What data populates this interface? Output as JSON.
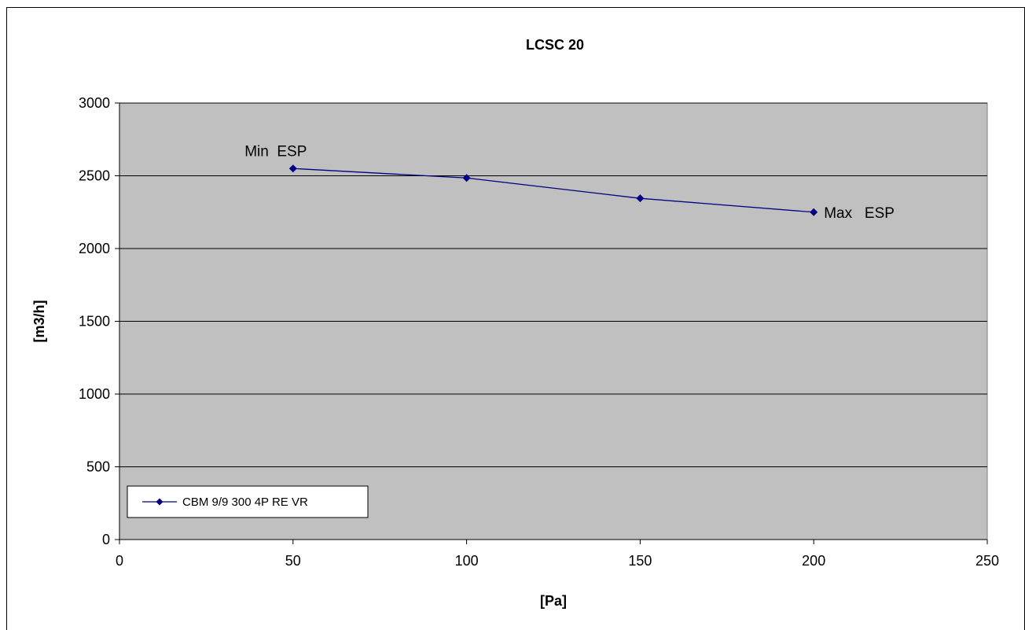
{
  "chart_data": {
    "type": "line",
    "title": "LCSC 20",
    "xlabel": "[Pa]",
    "ylabel": "[m3/h]",
    "xlim": [
      0,
      250
    ],
    "ylim": [
      0,
      3000
    ],
    "xticks": [
      0,
      50,
      100,
      150,
      200,
      250
    ],
    "yticks": [
      0,
      500,
      1000,
      1500,
      2000,
      2500,
      3000
    ],
    "grid": "horizontal major gridlines",
    "plot_background": "#C0C0C0",
    "legend_position": "bottom-left",
    "series": [
      {
        "name": "CBM 9/9 300 4P RE VR",
        "color": "#000080",
        "marker": "diamond",
        "x": [
          50,
          100,
          150,
          200
        ],
        "y": [
          2550,
          2485,
          2345,
          2250
        ]
      }
    ],
    "annotations": [
      {
        "text": "Min  ESP",
        "x": 50,
        "y": 2550,
        "anchor": "above-left"
      },
      {
        "text": "Max   ESP",
        "x": 200,
        "y": 2250,
        "anchor": "right"
      }
    ]
  }
}
